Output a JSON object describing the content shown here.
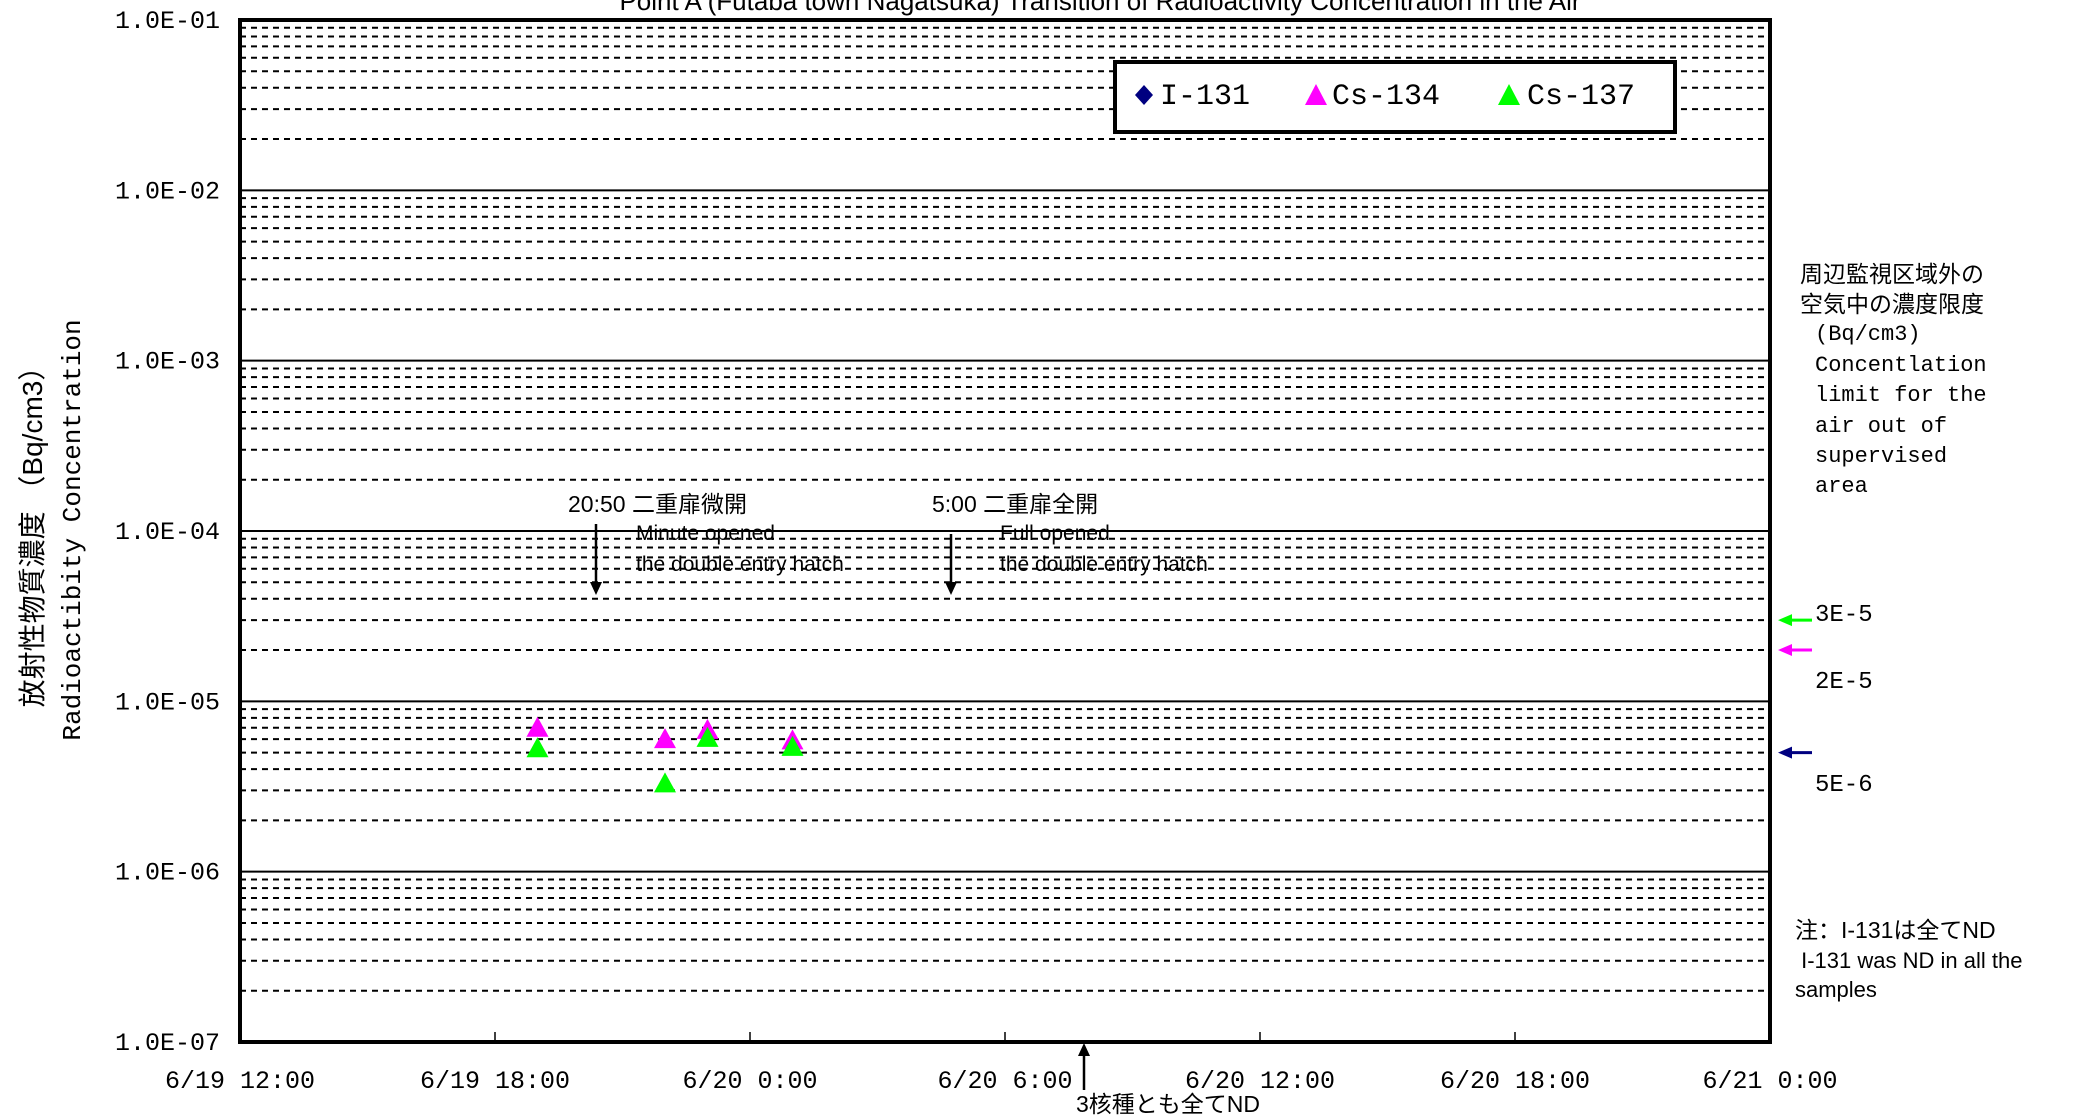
{
  "chart_data": {
    "type": "scatter",
    "title": "Point A (Futaba town Nagatsuka)   Transition of Radioactivity Concentration in the Air",
    "ylabel_jp": "放射性物質濃度 （Bq/cm3）",
    "ylabel_en": "Radioactibity Concentration",
    "y_scale": "log",
    "ylim": [
      1e-07,
      0.1
    ],
    "y_ticks": [
      {
        "value": 0.1,
        "label": "1.0E-01"
      },
      {
        "value": 0.01,
        "label": "1.0E-02"
      },
      {
        "value": 0.001,
        "label": "1.0E-03"
      },
      {
        "value": 0.0001,
        "label": "1.0E-04"
      },
      {
        "value": 1e-05,
        "label": "1.0E-05"
      },
      {
        "value": 1e-06,
        "label": "1.0E-06"
      },
      {
        "value": 1e-07,
        "label": "1.0E-07"
      }
    ],
    "xlim": [
      "6/19 12:00",
      "6/21 0:00"
    ],
    "x_ticks": [
      {
        "hours": 0,
        "label": "6/19 12:00"
      },
      {
        "hours": 6,
        "label": "6/19 18:00"
      },
      {
        "hours": 12,
        "label": "6/20 0:00"
      },
      {
        "hours": 18,
        "label": "6/20 6:00"
      },
      {
        "hours": 24,
        "label": "6/20 12:00"
      },
      {
        "hours": 30,
        "label": "6/20 18:00"
      },
      {
        "hours": 36,
        "label": "6/21 0:00"
      }
    ],
    "grid": true,
    "legend_position": "top-right",
    "series": [
      {
        "name": "I-131",
        "marker": "diamond",
        "color": "#000080",
        "points": []
      },
      {
        "name": "Cs-134",
        "marker": "triangle",
        "color": "#ff00ff",
        "points": [
          {
            "x": "6/19 19:00",
            "y": 7e-06
          },
          {
            "x": "6/19 22:00",
            "y": 6e-06
          },
          {
            "x": "6/19 23:00",
            "y": 6.8e-06
          },
          {
            "x": "6/20 1:00",
            "y": 5.9e-06
          }
        ]
      },
      {
        "name": "Cs-137",
        "marker": "triangle",
        "color": "#00ff00",
        "points": [
          {
            "x": "6/19 19:00",
            "y": 5.3e-06
          },
          {
            "x": "6/19 22:00",
            "y": 3.3e-06
          },
          {
            "x": "6/19 23:00",
            "y": 6.1e-06
          },
          {
            "x": "6/20 1:00",
            "y": 5.4e-06
          }
        ]
      }
    ],
    "annotations": [
      {
        "id": "hatch1",
        "x": "6/19 20:50",
        "jp": "20:50 二重扉微開",
        "en1": "Minute opened",
        "en2": "the double entry hatch"
      },
      {
        "id": "hatch2",
        "x": "6/20 5:00",
        "jp": "5:00 二重扉全開",
        "en1": "Full opened",
        "en2": "the double entry hatch"
      },
      {
        "id": "nd",
        "x": "6/20 7:56",
        "jp": "3核種とも全てND"
      }
    ],
    "limits_panel": {
      "jp_line1": "周辺監視区域外の",
      "jp_line2": "空気中の濃度限度",
      "unit": "(Bq/cm3)",
      "en_lines": [
        "Concentlation",
        "limit for the",
        "air out of",
        "supervised",
        "area"
      ],
      "limits": [
        {
          "series": "Cs-137",
          "label": "3E-5",
          "color": "#00ff00",
          "value": 3e-05
        },
        {
          "series": "Cs-134",
          "label": "2E-5",
          "color": "#ff00ff",
          "value": 2e-05
        },
        {
          "series": "I-131",
          "label": "5E-6",
          "color": "#000080",
          "value": 5e-06
        }
      ]
    },
    "note": {
      "jp": "注：I-131は全てND",
      "en1": " I-131 was ND in all the",
      "en2": "samples"
    }
  }
}
